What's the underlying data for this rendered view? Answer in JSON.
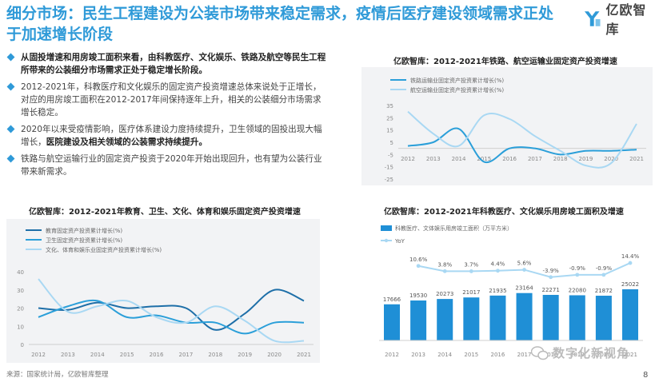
{
  "title": "细分市场：民生工程建设为公装市场带来稳定需求，疫情后医疗建设领域需求正处于加速增长阶段",
  "logo": {
    "text": "亿欧智库"
  },
  "bullets": [
    {
      "text": "从固投增速和用房竣工面积来看，由科教医疗、文化娱乐、铁路及航空等民生工程所带来的公装细分市场需求正处于稳定增长阶段。",
      "strong": true
    },
    {
      "text": "2012-2021年，科教医疗和文化娱乐的固定资产投资增速总体来说处于正增长，对应的用房竣工面积在2012-2017年间保持逐年上升，相关的公装细分市场需求增长稳定。",
      "strong": false
    },
    {
      "text": "2020年以来受疫情影响，医疗体系建设力度持续提升，卫生领域的固投出现大幅增长，",
      "strong_tail": "医院建设及相关领域的公装需求持续提升。",
      "strong": false
    },
    {
      "text": "铁路与航空运输行业的固定资产投资于2020年开始出现回升，也有望为公装行业带来新需求。",
      "strong": false
    }
  ],
  "source": "来源：国家统计局，亿欧智库整理",
  "page_number": "8",
  "watermark": "数字化新视角",
  "colors": {
    "accent": "#2f9ad8",
    "dark_line": "#1e6fa8",
    "mid_line": "#2b9fd9",
    "light_line": "#a9d8f3",
    "bar": "#1f8fd6"
  },
  "chart_data": [
    {
      "type": "line",
      "title": "亿欧智库：2012-2021年铁路、航空运输业固定资产投资增速",
      "categories": [
        "2012",
        "2013",
        "2014",
        "2015",
        "2016",
        "2017",
        "2018",
        "2019",
        "2020",
        "2021"
      ],
      "ylim": [
        -25,
        35
      ],
      "yticks": [
        "35",
        "25",
        "15",
        "5",
        "-5",
        "-15",
        "-25"
      ],
      "series": [
        {
          "name": "铁路运输业固定资产投资累计增长(%)",
          "color": "#2b9fd9",
          "values": [
            2,
            5,
            16,
            -11,
            0,
            0,
            -5,
            -2,
            -2,
            -1
          ]
        },
        {
          "name": "航空运输业固定资产投资累计增长(%)",
          "color": "#a9d8f3",
          "values": [
            30,
            12,
            2,
            27,
            24,
            10,
            -2,
            -14,
            -12,
            20
          ]
        }
      ]
    },
    {
      "type": "line",
      "title": "亿欧智库：2012-2021年教育、卫生、文化、体育和娱乐固定资产投资增速",
      "categories": [
        "2012",
        "2013",
        "2014",
        "2015",
        "2016",
        "2017",
        "2018",
        "2019",
        "2020",
        "2021"
      ],
      "ylim": [
        0,
        40
      ],
      "yticks": [
        "40",
        "30",
        "20",
        "10",
        "0"
      ],
      "series": [
        {
          "name": "教育固定资产投资累计增长(%)",
          "color": "#1e6fa8",
          "values": [
            20,
            19,
            23,
            20,
            21,
            20,
            8,
            17,
            30,
            24
          ]
        },
        {
          "name": "卫生固定资产投资累计增长(%)",
          "color": "#2b9fd9",
          "values": [
            15,
            21,
            24,
            15,
            16,
            12,
            12,
            6,
            12,
            12
          ]
        },
        {
          "name": "文化、体育和娱乐业固定资产投资累计增长(%)",
          "color": "#a9d8f3",
          "values": [
            36,
            18,
            21,
            24,
            15,
            12,
            21,
            13,
            2,
            2
          ]
        }
      ]
    },
    {
      "type": "bar",
      "title": "亿欧智库：2012-2021年科教医疗、文化娱乐用房竣工面积及增速",
      "categories": [
        "2012",
        "2013",
        "2014",
        "2015",
        "2016",
        "2017",
        "2018",
        "2019",
        "2020",
        "2021"
      ],
      "series": [
        {
          "name": "科教医疗、文体娱乐用房竣工面积（万平方米）",
          "color": "#1f8fd6",
          "values": [
            17666,
            19530,
            20273,
            21017,
            21935,
            23164,
            22271,
            22080,
            21872,
            25022
          ]
        },
        {
          "name": "YoY",
          "color": "#a9d8f3",
          "values": [
            null,
            10.6,
            3.8,
            3.7,
            4.4,
            5.6,
            -3.9,
            -0.9,
            -0.9,
            14.4
          ]
        }
      ],
      "value_labels": [
        "17666",
        "19530",
        "20273",
        "21017",
        "21935",
        "23164",
        "22271",
        "22080",
        "21872",
        "25022"
      ],
      "yoy_labels": [
        "",
        "10.6%",
        "3.8%",
        "3.7%",
        "4.4%",
        "5.6%",
        "-3.9%",
        "-0.9%",
        "-0.9%",
        "14.4%"
      ],
      "bar_ylim": [
        0,
        50000
      ],
      "line_ylim": [
        -30,
        30
      ]
    }
  ]
}
